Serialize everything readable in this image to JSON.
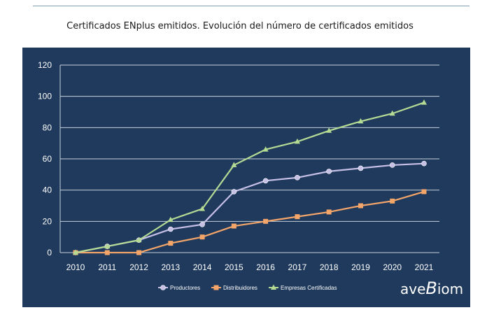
{
  "title": "Certificados ENplus emitidos. Evolución del número de certificados emitidos",
  "logo_text": "aveBiom",
  "colors": {
    "background": "#1f3a5c",
    "grid": "#c9d1db",
    "productores": "#c6bfe6",
    "distribuidores": "#f4a56a",
    "empresas": "#b4da94"
  },
  "chart_data": {
    "type": "line",
    "title": "Certificados ENplus emitidos. Evolución del número de certificados emitidos",
    "xlabel": "",
    "ylabel": "",
    "x": [
      "2010",
      "2011",
      "2012",
      "2013",
      "2014",
      "2015",
      "2016",
      "2017",
      "2018",
      "2019",
      "2020",
      "2021"
    ],
    "ylim": [
      0,
      120
    ],
    "yticks": [
      0,
      20,
      40,
      60,
      80,
      100,
      120
    ],
    "grid": true,
    "legend_position": "bottom",
    "series": [
      {
        "name": "Productores",
        "marker": "circle",
        "values": [
          0,
          4,
          8,
          15,
          18,
          39,
          46,
          48,
          52,
          54,
          56,
          57
        ]
      },
      {
        "name": "Distribuidores",
        "marker": "square",
        "values": [
          0,
          0,
          0,
          6,
          10,
          17,
          20,
          23,
          26,
          30,
          33,
          39
        ]
      },
      {
        "name": "Empresas Certificadas",
        "marker": "triangle",
        "values": [
          0,
          4,
          8,
          21,
          28,
          56,
          66,
          71,
          78,
          84,
          89,
          96
        ]
      }
    ]
  }
}
